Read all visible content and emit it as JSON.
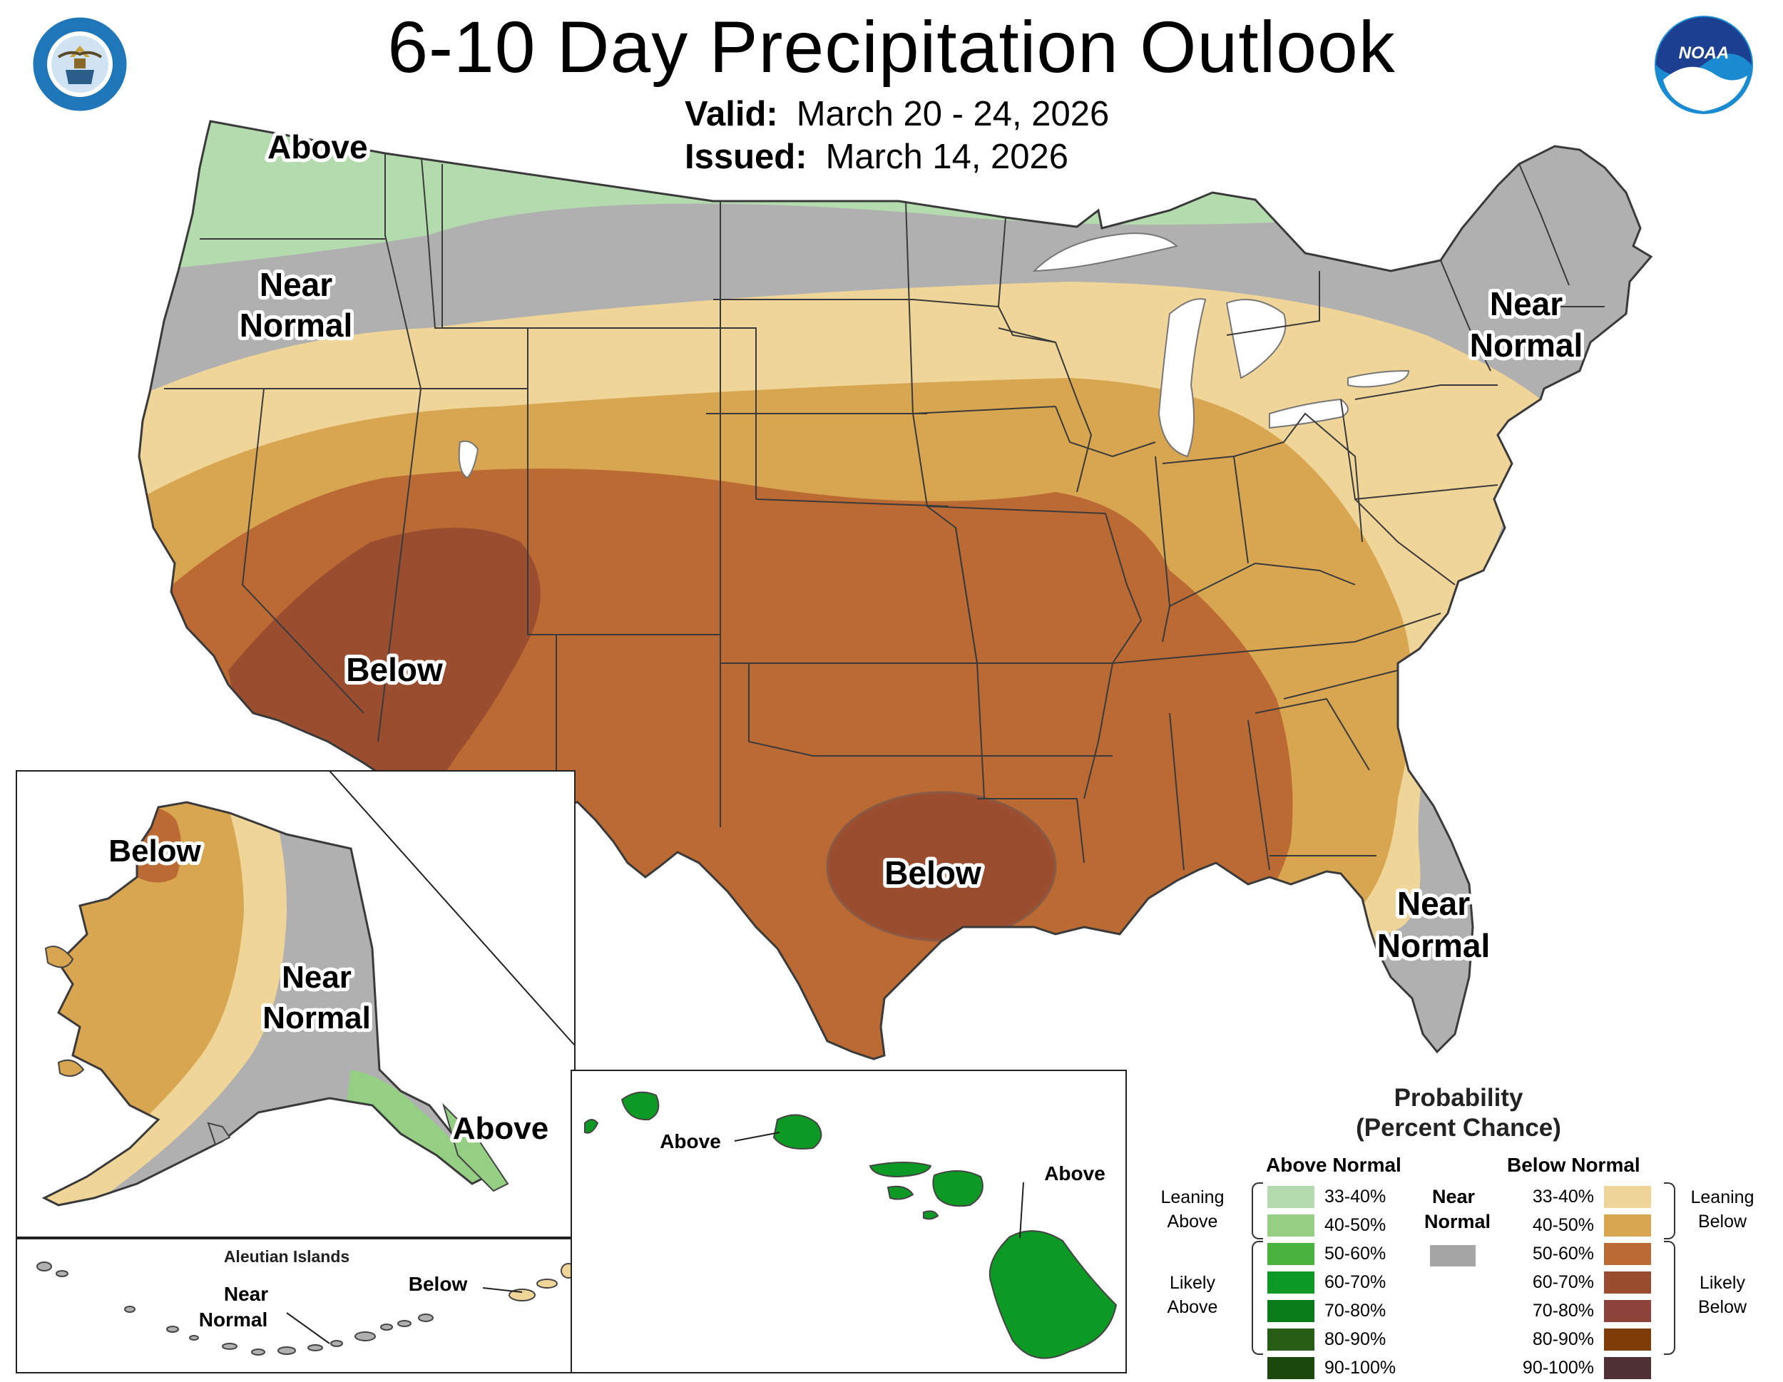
{
  "header": {
    "title": "6-10 Day Precipitation Outlook",
    "valid_label": "Valid:",
    "valid_value": "March 20 - 24, 2026",
    "issued_label": "Issued:",
    "issued_value": "March 14, 2026"
  },
  "logos": {
    "commerce_seal_text": "DEPARTMENT OF COMMERCE · UNITED STATES OF AMERICA",
    "noaa_text": "NOAA"
  },
  "map_labels": {
    "conus_above": "Above",
    "conus_nw_near": [
      "Near",
      "Normal"
    ],
    "conus_ne_near": [
      "Near",
      "Normal"
    ],
    "conus_fl_near": [
      "Near",
      "Normal"
    ],
    "conus_sw_below": "Below",
    "conus_tx_below": "Below",
    "ak_below": "Below",
    "ak_near": [
      "Near",
      "Normal"
    ],
    "ak_above": "Above",
    "aleutian_title": "Aleutian Islands",
    "aleutian_near": [
      "Near",
      "Normal"
    ],
    "aleutian_below": "Below",
    "hi_above_1": "Above",
    "hi_above_2": "Above"
  },
  "legend": {
    "title_line1": "Probability",
    "title_line2": "(Percent Chance)",
    "above_head": "Above Normal",
    "below_head": "Below Normal",
    "near_head_1": "Near",
    "near_head_2": "Normal",
    "leaning_above": [
      "Leaning",
      "Above"
    ],
    "likely_above": [
      "Likely",
      "Above"
    ],
    "leaning_below": [
      "Leaning",
      "Below"
    ],
    "likely_below": [
      "Likely",
      "Below"
    ],
    "above_rows": [
      {
        "label": "33-40%",
        "color": "#b3dbad"
      },
      {
        "label": "40-50%",
        "color": "#94cf83"
      },
      {
        "label": "50-60%",
        "color": "#49b23c"
      },
      {
        "label": "60-70%",
        "color": "#0c9a24"
      },
      {
        "label": "70-80%",
        "color": "#077c18"
      },
      {
        "label": "80-90%",
        "color": "#285d16"
      },
      {
        "label": "90-100%",
        "color": "#1c4a0d"
      }
    ],
    "below_rows": [
      {
        "label": "33-40%",
        "color": "#f0d598"
      },
      {
        "label": "40-50%",
        "color": "#d8a650"
      },
      {
        "label": "50-60%",
        "color": "#bc6a34"
      },
      {
        "label": "60-70%",
        "color": "#9a4e2f"
      },
      {
        "label": "70-80%",
        "color": "#8e433a"
      },
      {
        "label": "80-90%",
        "color": "#7e3c07"
      },
      {
        "label": "90-100%",
        "color": "#4f3034"
      }
    ],
    "near_color": "#a5a5a5"
  },
  "colors": {
    "above_leaning": "#b3dbad",
    "near_normal": "#b0b0b0",
    "below_leaning": "#f0d598",
    "below_40_50": "#d8a650",
    "below_50_60": "#bc6a34",
    "below_60_70": "#9a4e2f",
    "hawaii_above": "#0c9a24",
    "alaska_above": "#94cf83"
  }
}
